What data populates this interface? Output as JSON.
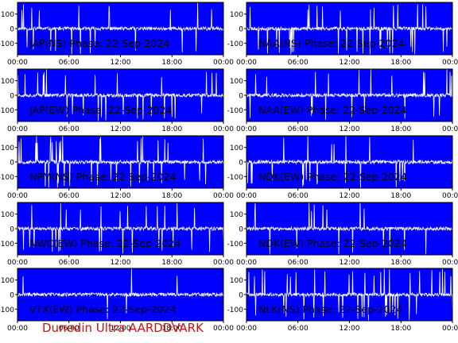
{
  "credit": "Dunedin Ultra AARDDVARK",
  "colors": {
    "plot_bg": "#0000ff",
    "trace": "#ffffff",
    "text": "#000000",
    "credit": "#cc1111"
  },
  "chart_data": [
    {
      "type": "line",
      "title": "JAP(NS) Phase: 22-Sep-2024",
      "xlim": [
        0,
        24
      ],
      "ylim": [
        -180,
        180
      ],
      "xticks": [
        "00:00",
        "06:00",
        "12:00",
        "18:00",
        "00:00"
      ],
      "yticks": [
        100,
        0,
        -100
      ],
      "series": [
        {
          "density": 0.05,
          "seed": 11
        }
      ]
    },
    {
      "type": "line",
      "title": "NAA(NS) Phase: 22-Sep-2024",
      "xlim": [
        0,
        24
      ],
      "ylim": [
        -180,
        180
      ],
      "xticks": [
        "00:00",
        "06:00",
        "12:00",
        "18:00",
        "00:00"
      ],
      "yticks": [
        100,
        0,
        -100
      ],
      "series": [
        {
          "density": 0.05,
          "seed": 23
        }
      ]
    },
    {
      "type": "line",
      "title": "JAP(EW) Phase: 22-Sep-2024",
      "xlim": [
        0,
        24
      ],
      "ylim": [
        -180,
        180
      ],
      "xticks": [
        "00:00",
        "06:00",
        "12:00",
        "18:00",
        "00:00"
      ],
      "yticks": [
        100,
        0,
        -100
      ],
      "series": [
        {
          "density": 0.05,
          "seed": 37
        }
      ]
    },
    {
      "type": "line",
      "title": "NAA(EW) Phase: 22-Sep-2024",
      "xlim": [
        0,
        24
      ],
      "ylim": [
        -180,
        180
      ],
      "xticks": [
        "00:00",
        "06:00",
        "12:00",
        "18:00",
        "00:00"
      ],
      "yticks": [
        100,
        0,
        -100
      ],
      "series": [
        {
          "density": 0.04,
          "seed": 41
        }
      ]
    },
    {
      "type": "line",
      "title": "NPM(NS) Phase: 22-Sep-2024",
      "xlim": [
        0,
        24
      ],
      "ylim": [
        -180,
        180
      ],
      "xticks": [
        "00:00",
        "06:00",
        "12:00",
        "18:00",
        "00:00"
      ],
      "yticks": [
        100,
        0,
        -100
      ],
      "series": [
        {
          "density": 0.09,
          "seed": 53
        }
      ]
    },
    {
      "type": "line",
      "title": "NDK(EW) Phase: 22-Sep-2024",
      "xlim": [
        0,
        24
      ],
      "ylim": [
        -180,
        180
      ],
      "xticks": [
        "00:00",
        "06:00",
        "12:00",
        "18:00",
        "00:00"
      ],
      "yticks": [
        100,
        0,
        -100
      ],
      "series": [
        {
          "density": 0.03,
          "seed": 67
        }
      ]
    },
    {
      "type": "line",
      "title": "NWC(EW) Phase: 22-Sep-2024",
      "xlim": [
        0,
        24
      ],
      "ylim": [
        -180,
        180
      ],
      "xticks": [
        "00:00",
        "06:00",
        "12:00",
        "18:00",
        "00:00"
      ],
      "yticks": [
        100,
        0,
        -100
      ],
      "series": [
        {
          "density": 0.05,
          "seed": 71
        }
      ]
    },
    {
      "type": "line",
      "title": "NDK(EW) Phase: 22-Sep-2024",
      "xlim": [
        0,
        24
      ],
      "ylim": [
        -180,
        180
      ],
      "xticks": [
        "00:00",
        "06:00",
        "12:00",
        "18:00",
        "00:00"
      ],
      "yticks": [
        100,
        0,
        -100
      ],
      "series": [
        {
          "density": 0.02,
          "seed": 83
        }
      ]
    },
    {
      "type": "line",
      "title": "VTX(EW) Phase: 22-Sep-2024",
      "xlim": [
        0,
        24
      ],
      "ylim": [
        -180,
        180
      ],
      "xticks": [
        "00:00",
        "06:00",
        "12:00",
        "18:00",
        "00:00"
      ],
      "yticks": [
        100,
        0,
        -100
      ],
      "series": [
        {
          "density": 0.015,
          "seed": 97
        }
      ]
    },
    {
      "type": "line",
      "title": "NLK(NS) Phase: 22-Sep-2024",
      "xlim": [
        0,
        24
      ],
      "ylim": [
        -180,
        180
      ],
      "xticks": [
        "00:00",
        "06:00",
        "12:00",
        "18:00",
        "00:00"
      ],
      "yticks": [
        100,
        0,
        -100
      ],
      "series": [
        {
          "density": 0.08,
          "seed": 101
        }
      ]
    }
  ]
}
